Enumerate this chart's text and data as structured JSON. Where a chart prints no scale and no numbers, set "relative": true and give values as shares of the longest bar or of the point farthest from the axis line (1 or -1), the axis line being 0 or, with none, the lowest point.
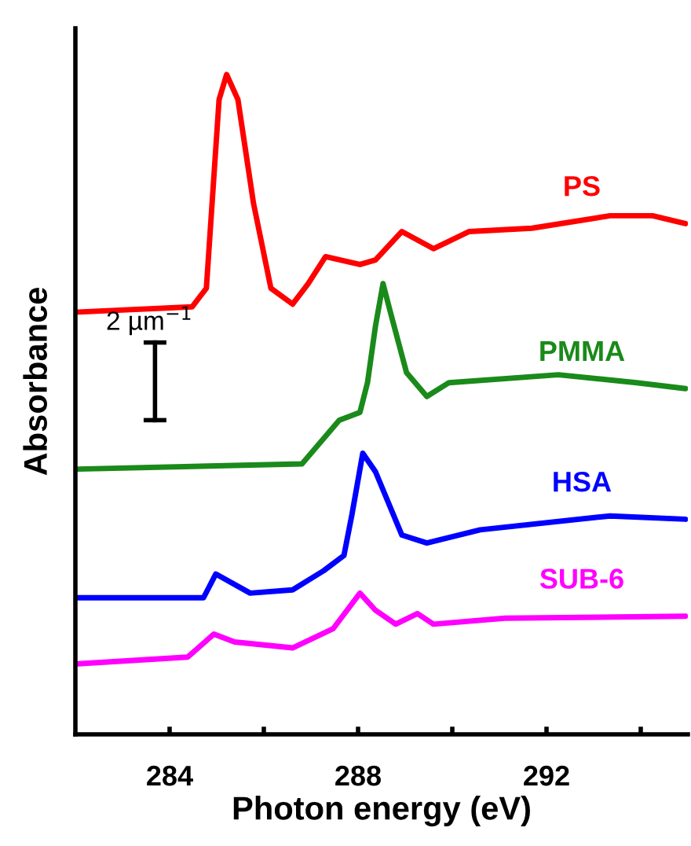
{
  "chart_data": {
    "type": "line",
    "xlabel": "Photon energy (eV)",
    "ylabel": "Absorbance",
    "relative": true,
    "xlim": [
      282,
      295
    ],
    "xticks": [
      284,
      {
        "value": 286,
        "label": null
      },
      288,
      {
        "value": 290,
        "label": null
      },
      292,
      {
        "value": 294,
        "label": null
      }
    ],
    "tick_labels": "x",
    "grid": false,
    "legend": false,
    "marker": "none",
    "line_style": "solid",
    "annotations": [
      "2 µm$^{−1}$"
    ],
    "series": [
      {
        "name": "PS",
        "color": "#ff0000",
        "x": [
          282.06,
          284.48,
          284.78,
          285.05,
          285.21,
          285.45,
          285.78,
          286.15,
          286.61,
          286.94,
          287.31,
          288.04,
          288.37,
          288.93,
          289.6,
          290.36,
          291.69,
          293.35,
          294.25,
          294.95
        ],
        "values": [
          0.64,
          0.648,
          0.676,
          0.962,
          1,
          0.962,
          0.805,
          0.676,
          0.652,
          0.683,
          0.724,
          0.712,
          0.719,
          0.762,
          0.736,
          0.762,
          0.767,
          0.786,
          0.786,
          0.774
        ]
      },
      {
        "name": "PMMA",
        "color": "#1a8a1a",
        "x": [
          282.06,
          286.81,
          287.6,
          288.04,
          288.2,
          288.37,
          288.53,
          288.7,
          289.03,
          289.46,
          289.93,
          292.25,
          293.91,
          294.95
        ],
        "values": [
          0.402,
          0.41,
          0.476,
          0.488,
          0.533,
          0.619,
          0.683,
          0.636,
          0.548,
          0.512,
          0.533,
          0.545,
          0.533,
          0.524
        ]
      },
      {
        "name": "HSA",
        "color": "#0000ff",
        "x": [
          282.06,
          284.72,
          284.98,
          285.71,
          286.61,
          287.27,
          287.7,
          287.87,
          288.1,
          288.37,
          288.93,
          289.46,
          290.59,
          293.35,
          294.95
        ],
        "values": [
          0.207,
          0.207,
          0.243,
          0.214,
          0.219,
          0.248,
          0.271,
          0.333,
          0.426,
          0.398,
          0.302,
          0.29,
          0.31,
          0.331,
          0.326
        ]
      },
      {
        "name": "SUB-6",
        "color": "#ff00ff",
        "x": [
          282.06,
          284.38,
          284.94,
          285.38,
          286.61,
          287.47,
          288.04,
          288.37,
          288.8,
          289.26,
          289.6,
          291.12,
          294.95
        ],
        "values": [
          0.107,
          0.117,
          0.152,
          0.14,
          0.131,
          0.16,
          0.214,
          0.188,
          0.167,
          0.183,
          0.167,
          0.176,
          0.179
        ]
      }
    ]
  }
}
